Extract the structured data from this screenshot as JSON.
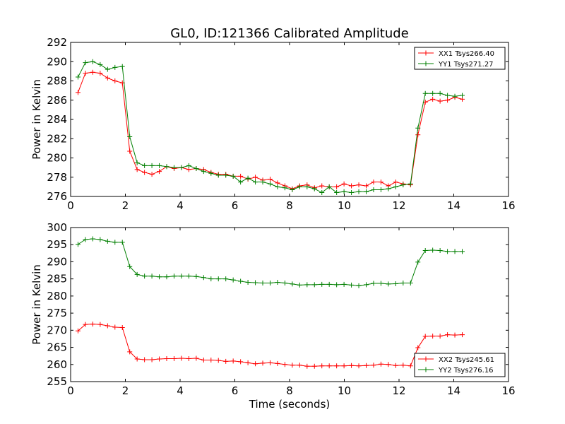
{
  "title": "GL0, ID:121366 Calibrated Amplitude",
  "colors": {
    "xx": "#ff0000",
    "yy": "#007f00"
  },
  "chart_data": [
    {
      "type": "line",
      "title": "GL0, ID:121366 Calibrated Amplitude",
      "xlabel": "",
      "ylabel": "Power in Kelvin",
      "xlim": [
        0,
        16
      ],
      "ylim": [
        276,
        292
      ],
      "xticks": [
        0,
        2,
        4,
        6,
        8,
        10,
        12,
        14,
        16
      ],
      "yticks": [
        276,
        278,
        280,
        282,
        284,
        286,
        288,
        290,
        292
      ],
      "legend_position": "top-right",
      "x": [
        0.27,
        0.54,
        0.81,
        1.08,
        1.35,
        1.62,
        1.89,
        2.16,
        2.43,
        2.7,
        2.97,
        3.24,
        3.51,
        3.78,
        4.05,
        4.32,
        4.59,
        4.86,
        5.13,
        5.4,
        5.67,
        5.94,
        6.21,
        6.48,
        6.75,
        7.02,
        7.29,
        7.56,
        7.83,
        8.1,
        8.37,
        8.64,
        8.91,
        9.18,
        9.45,
        9.72,
        9.99,
        10.26,
        10.53,
        10.8,
        11.07,
        11.34,
        11.61,
        11.88,
        12.15,
        12.42,
        12.69,
        12.96,
        13.23,
        13.5,
        13.77,
        14.04,
        14.31
      ],
      "series": [
        {
          "name": "XX1 Tsys266.40",
          "color": "#ff0000",
          "values": [
            286.8,
            288.8,
            288.9,
            288.8,
            288.3,
            288.0,
            287.8,
            280.7,
            278.8,
            278.5,
            278.3,
            278.6,
            279.1,
            278.9,
            279.0,
            278.8,
            278.9,
            278.8,
            278.5,
            278.3,
            278.3,
            278.1,
            278.1,
            277.8,
            278.0,
            277.7,
            277.8,
            277.4,
            277.1,
            276.8,
            277.1,
            277.2,
            276.9,
            277.1,
            277.0,
            277.0,
            277.3,
            277.1,
            277.2,
            277.1,
            277.5,
            277.5,
            277.1,
            277.5,
            277.3,
            277.2,
            282.4,
            285.8,
            286.1,
            285.9,
            286.0,
            286.3,
            286.1
          ]
        },
        {
          "name": "YY1 Tsys271.27",
          "color": "#007f00",
          "values": [
            288.4,
            289.9,
            290.0,
            289.7,
            289.2,
            289.4,
            289.5,
            282.2,
            279.5,
            279.2,
            279.2,
            279.2,
            279.1,
            279.0,
            279.0,
            279.2,
            278.9,
            278.6,
            278.4,
            278.2,
            278.2,
            278.1,
            277.5,
            277.9,
            277.5,
            277.5,
            277.3,
            277.0,
            276.9,
            276.7,
            277.0,
            277.0,
            276.8,
            276.4,
            277.0,
            276.4,
            276.5,
            276.4,
            276.5,
            276.5,
            276.7,
            276.7,
            276.8,
            277.0,
            277.2,
            277.3,
            283.1,
            286.7,
            286.7,
            286.7,
            286.5,
            286.4,
            286.5
          ]
        }
      ]
    },
    {
      "type": "line",
      "title": "",
      "xlabel": "Time (seconds)",
      "ylabel": "Power in Kelvin",
      "xlim": [
        0,
        16
      ],
      "ylim": [
        255,
        300
      ],
      "xticks": [
        0,
        2,
        4,
        6,
        8,
        10,
        12,
        14,
        16
      ],
      "yticks": [
        255,
        260,
        265,
        270,
        275,
        280,
        285,
        290,
        295,
        300
      ],
      "legend_position": "bottom-right",
      "x": [
        0.27,
        0.54,
        0.81,
        1.08,
        1.35,
        1.62,
        1.89,
        2.16,
        2.43,
        2.7,
        2.97,
        3.24,
        3.51,
        3.78,
        4.05,
        4.32,
        4.59,
        4.86,
        5.13,
        5.4,
        5.67,
        5.94,
        6.21,
        6.48,
        6.75,
        7.02,
        7.29,
        7.56,
        7.83,
        8.1,
        8.37,
        8.64,
        8.91,
        9.18,
        9.45,
        9.72,
        9.99,
        10.26,
        10.53,
        10.8,
        11.07,
        11.34,
        11.61,
        11.88,
        12.15,
        12.42,
        12.69,
        12.96,
        13.23,
        13.5,
        13.77,
        14.04,
        14.31
      ],
      "series": [
        {
          "name": "XX2 Tsys245.61",
          "color": "#ff0000",
          "values": [
            269.8,
            271.7,
            271.8,
            271.7,
            271.3,
            270.9,
            270.8,
            263.7,
            261.6,
            261.4,
            261.4,
            261.6,
            261.7,
            261.7,
            261.8,
            261.7,
            261.8,
            261.3,
            261.3,
            261.2,
            260.9,
            261.0,
            260.8,
            260.5,
            260.2,
            260.4,
            260.5,
            260.3,
            260.0,
            259.8,
            259.8,
            259.5,
            259.5,
            259.6,
            259.6,
            259.6,
            259.6,
            259.7,
            259.6,
            259.7,
            259.8,
            260.1,
            260.0,
            259.7,
            259.8,
            259.6,
            264.9,
            268.2,
            268.3,
            268.3,
            268.7,
            268.6,
            268.7
          ]
        },
        {
          "name": "YY2 Tsys276.16",
          "color": "#007f00",
          "values": [
            295.1,
            296.5,
            296.7,
            296.5,
            296.0,
            295.7,
            295.7,
            288.6,
            286.3,
            285.8,
            285.8,
            285.6,
            285.6,
            285.8,
            285.8,
            285.8,
            285.7,
            285.4,
            285.0,
            285.0,
            285.0,
            284.7,
            284.3,
            284.0,
            283.9,
            283.8,
            283.8,
            284.0,
            283.8,
            283.5,
            283.2,
            283.3,
            283.3,
            283.4,
            283.4,
            283.3,
            283.4,
            283.2,
            283.0,
            283.3,
            283.7,
            283.7,
            283.5,
            283.6,
            283.8,
            283.8,
            289.9,
            293.3,
            293.4,
            293.3,
            293.0,
            293.0,
            293.0
          ]
        }
      ]
    }
  ]
}
